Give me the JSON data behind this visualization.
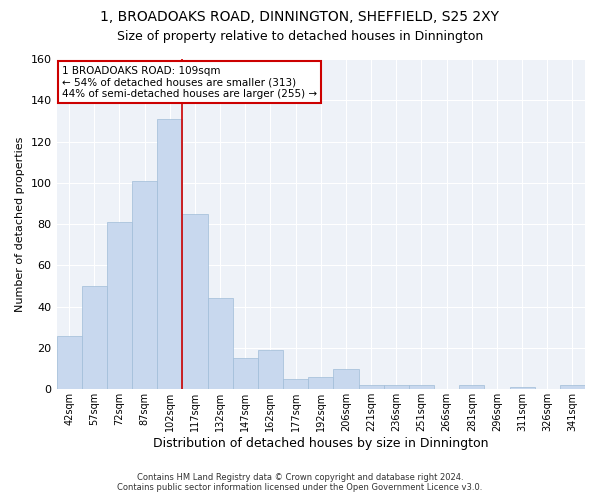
{
  "title": "1, BROADOAKS ROAD, DINNINGTON, SHEFFIELD, S25 2XY",
  "subtitle": "Size of property relative to detached houses in Dinnington",
  "xlabel": "Distribution of detached houses by size in Dinnington",
  "ylabel": "Number of detached properties",
  "bins": [
    "42sqm",
    "57sqm",
    "72sqm",
    "87sqm",
    "102sqm",
    "117sqm",
    "132sqm",
    "147sqm",
    "162sqm",
    "177sqm",
    "192sqm",
    "206sqm",
    "221sqm",
    "236sqm",
    "251sqm",
    "266sqm",
    "281sqm",
    "296sqm",
    "311sqm",
    "326sqm",
    "341sqm"
  ],
  "values": [
    26,
    50,
    81,
    101,
    131,
    85,
    44,
    15,
    19,
    5,
    6,
    10,
    2,
    2,
    2,
    0,
    2,
    0,
    1,
    0,
    2
  ],
  "bar_color": "#c8d8ee",
  "bar_edge_color": "#a0bcd8",
  "subject_bin_index": 4,
  "vline_color": "#cc0000",
  "annotation_line1": "1 BROADOAKS ROAD: 109sqm",
  "annotation_line2": "← 54% of detached houses are smaller (313)",
  "annotation_line3": "44% of semi-detached houses are larger (255) →",
  "annotation_box_color": "#ffffff",
  "annotation_box_edge": "#cc0000",
  "ylim": [
    0,
    160
  ],
  "yticks": [
    0,
    20,
    40,
    60,
    80,
    100,
    120,
    140,
    160
  ],
  "footer1": "Contains HM Land Registry data © Crown copyright and database right 2024.",
  "footer2": "Contains public sector information licensed under the Open Government Licence v3.0.",
  "bg_color": "#ffffff",
  "plot_bg_color": "#eef2f8",
  "grid_color": "#ffffff",
  "title_fontsize": 10,
  "subtitle_fontsize": 9
}
